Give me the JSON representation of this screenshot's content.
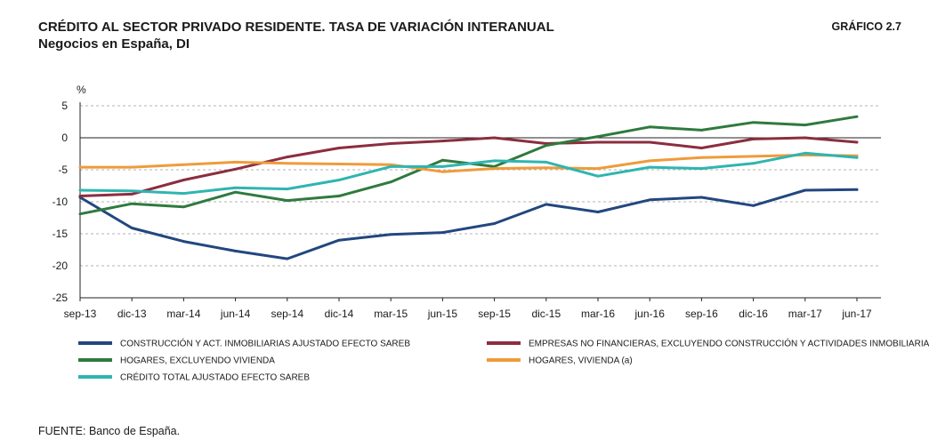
{
  "header": {
    "title": "CRÉDITO AL SECTOR PRIVADO RESIDENTE. TASA DE VARIACIÓN INTERANUAL",
    "subtitle": "Negocios en España, DI",
    "figure_number": "GRÁFICO 2.7"
  },
  "footer": {
    "source": "FUENTE: Banco de España."
  },
  "chart_data": {
    "type": "line",
    "title": "CRÉDITO AL SECTOR PRIVADO RESIDENTE. TASA DE VARIACIÓN INTERANUAL",
    "subtitle": "Negocios en España, DI",
    "ylabel": "%",
    "ylim": [
      -25,
      5
    ],
    "yticks": [
      5,
      0,
      -5,
      -10,
      -15,
      -20,
      -25
    ],
    "grid": true,
    "legend_position": "bottom",
    "categories": [
      "sep-13",
      "dic-13",
      "mar-14",
      "jun-14",
      "sep-14",
      "dic-14",
      "mar-15",
      "jun-15",
      "sep-15",
      "dic-15",
      "mar-16",
      "jun-16",
      "sep-16",
      "dic-16",
      "mar-17",
      "jun-17"
    ],
    "series": [
      {
        "name": "CONSTRUCCIÓN Y ACT. INMOBILIARIAS AJUSTADO EFECTO SAREB",
        "color": "#22477f",
        "values": [
          -9.3,
          -14.1,
          -16.2,
          -17.7,
          -18.9,
          -16.0,
          -15.1,
          -14.8,
          -13.4,
          -10.4,
          -11.6,
          -9.7,
          -9.3,
          -10.6,
          -8.2,
          -8.1
        ]
      },
      {
        "name": "EMPRESAS NO FINANCIERAS, EXCLUYENDO CONSTRUCCIÓN Y ACTIVIDADES INMOBILIARIAS",
        "color": "#8c2d3f",
        "values": [
          -9.1,
          -8.8,
          -6.6,
          -4.9,
          -3.0,
          -1.6,
          -0.9,
          -0.5,
          0.0,
          -0.9,
          -0.7,
          -0.7,
          -1.6,
          -0.2,
          0.0,
          -0.7
        ]
      },
      {
        "name": "HOGARES, EXCLUYENDO VIVIENDA",
        "color": "#2f7a3e",
        "values": [
          -11.9,
          -10.3,
          -10.8,
          -8.5,
          -9.8,
          -9.1,
          -6.9,
          -3.5,
          -4.5,
          -1.2,
          0.2,
          1.7,
          1.2,
          2.4,
          2.0,
          3.3
        ]
      },
      {
        "name": "HOGARES, VIVIENDA (a)",
        "color": "#ef9b3a",
        "values": [
          -4.6,
          -4.6,
          -4.2,
          -3.8,
          -4.0,
          -4.1,
          -4.2,
          -5.3,
          -4.8,
          -4.7,
          -4.8,
          -3.6,
          -3.1,
          -2.9,
          -2.7,
          -2.8
        ]
      },
      {
        "name": "CRÉDITO TOTAL AJUSTADO EFECTO SAREB",
        "color": "#2fb5b0",
        "values": [
          -8.2,
          -8.3,
          -8.7,
          -7.8,
          -8.0,
          -6.6,
          -4.5,
          -4.5,
          -3.6,
          -3.8,
          -6.0,
          -4.6,
          -4.8,
          -4.0,
          -2.4,
          -3.1
        ]
      }
    ]
  }
}
